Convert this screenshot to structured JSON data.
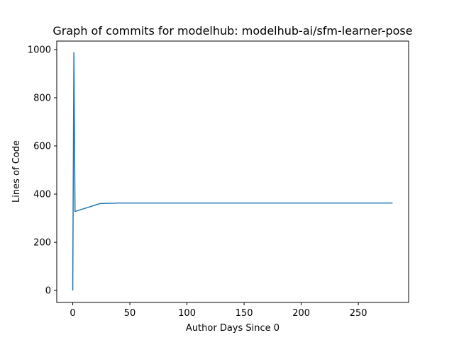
{
  "chart_data": {
    "type": "line",
    "title": "Graph of commits for modelhub: modelhub-ai/sfm-learner-pose",
    "xlabel": "Author Days Since 0",
    "ylabel": "Lines of Code",
    "xlim": [
      -14,
      294
    ],
    "ylim": [
      -49.5,
      1035
    ],
    "xticks": [
      0,
      50,
      100,
      150,
      200,
      250
    ],
    "yticks": [
      0,
      200,
      400,
      600,
      800,
      1000
    ],
    "grid": false,
    "series": [
      {
        "color": "#1f77b4",
        "x": [
          0,
          1,
          2,
          24,
          40,
          280
        ],
        "y": [
          0,
          987,
          328,
          361,
          363,
          363
        ]
      }
    ]
  }
}
